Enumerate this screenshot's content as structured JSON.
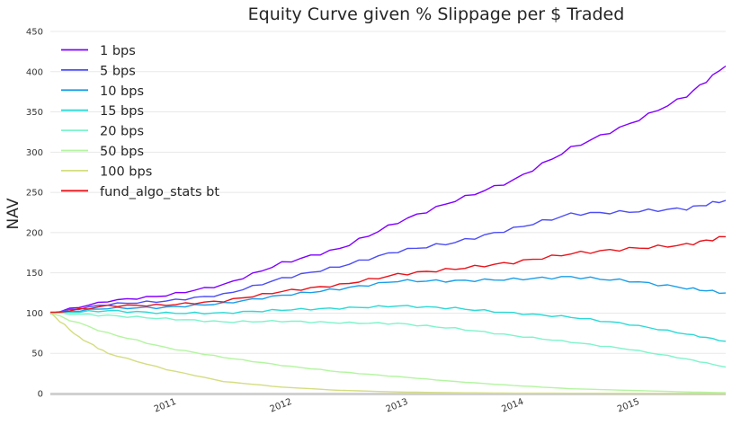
{
  "chart_data": {
    "type": "line",
    "title": "Equity Curve given % Slippage per $ Traded",
    "xlabel": "",
    "ylabel": "NAV",
    "x_domain": [
      "2010-01-01",
      "2015-11-01"
    ],
    "ylim": [
      0,
      450
    ],
    "yticks": [
      0,
      50,
      100,
      150,
      200,
      250,
      300,
      350,
      400,
      450
    ],
    "xticks": [
      "2011",
      "2012",
      "2013",
      "2014",
      "2015"
    ],
    "grid": true,
    "legend_position": "top-left",
    "series": [
      {
        "name": "1 bps",
        "color": "#8000ff",
        "points": [
          [
            "2010-01-01",
            100
          ],
          [
            "2010-07-01",
            115
          ],
          [
            "2011-01-01",
            122
          ],
          [
            "2011-07-01",
            135
          ],
          [
            "2012-01-01",
            162
          ],
          [
            "2012-07-01",
            180
          ],
          [
            "2013-01-01",
            213
          ],
          [
            "2013-07-01",
            240
          ],
          [
            "2014-01-01",
            265
          ],
          [
            "2014-07-01",
            305
          ],
          [
            "2015-01-01",
            335
          ],
          [
            "2015-07-01",
            370
          ],
          [
            "2015-11-01",
            407
          ]
        ]
      },
      {
        "name": "5 bps",
        "color": "#4d4df5",
        "points": [
          [
            "2010-01-01",
            100
          ],
          [
            "2010-07-01",
            111
          ],
          [
            "2011-01-01",
            115
          ],
          [
            "2011-07-01",
            123
          ],
          [
            "2012-01-01",
            143
          ],
          [
            "2012-07-01",
            158
          ],
          [
            "2013-01-01",
            177
          ],
          [
            "2013-07-01",
            188
          ],
          [
            "2014-01-01",
            205
          ],
          [
            "2014-07-01",
            223
          ],
          [
            "2015-01-01",
            226
          ],
          [
            "2015-07-01",
            230
          ],
          [
            "2015-11-01",
            240
          ]
        ]
      },
      {
        "name": "10 bps",
        "color": "#1a9ee8",
        "points": [
          [
            "2010-01-01",
            100
          ],
          [
            "2010-07-01",
            106
          ],
          [
            "2011-01-01",
            107
          ],
          [
            "2011-07-01",
            112
          ],
          [
            "2012-01-01",
            122
          ],
          [
            "2012-07-01",
            130
          ],
          [
            "2013-01-01",
            140
          ],
          [
            "2013-07-01",
            140
          ],
          [
            "2014-01-01",
            142
          ],
          [
            "2014-07-01",
            145
          ],
          [
            "2015-01-01",
            140
          ],
          [
            "2015-07-01",
            131
          ],
          [
            "2015-11-01",
            125
          ]
        ]
      },
      {
        "name": "15 bps",
        "color": "#2cd9d6",
        "points": [
          [
            "2010-01-01",
            100
          ],
          [
            "2010-07-01",
            103
          ],
          [
            "2011-01-01",
            100
          ],
          [
            "2011-07-01",
            100
          ],
          [
            "2012-01-01",
            104
          ],
          [
            "2012-07-01",
            106
          ],
          [
            "2013-01-01",
            109
          ],
          [
            "2013-07-01",
            106
          ],
          [
            "2014-01-01",
            100
          ],
          [
            "2014-07-01",
            95
          ],
          [
            "2015-01-01",
            86
          ],
          [
            "2015-07-01",
            74
          ],
          [
            "2015-11-01",
            65
          ]
        ]
      },
      {
        "name": "20 bps",
        "color": "#7ef4cb",
        "points": [
          [
            "2010-01-01",
            100
          ],
          [
            "2010-07-01",
            97
          ],
          [
            "2011-01-01",
            93
          ],
          [
            "2011-07-01",
            89
          ],
          [
            "2012-01-01",
            90
          ],
          [
            "2012-07-01",
            88
          ],
          [
            "2013-01-01",
            87
          ],
          [
            "2013-07-01",
            81
          ],
          [
            "2014-01-01",
            72
          ],
          [
            "2014-07-01",
            64
          ],
          [
            "2015-01-01",
            55
          ],
          [
            "2015-07-01",
            43
          ],
          [
            "2015-11-01",
            33
          ]
        ]
      },
      {
        "name": "50 bps",
        "color": "#b3f5a0",
        "points": [
          [
            "2010-01-01",
            100
          ],
          [
            "2010-07-01",
            75
          ],
          [
            "2011-01-01",
            57
          ],
          [
            "2011-07-01",
            45
          ],
          [
            "2012-01-01",
            35
          ],
          [
            "2012-07-01",
            27
          ],
          [
            "2013-01-01",
            21
          ],
          [
            "2013-07-01",
            15
          ],
          [
            "2014-01-01",
            10
          ],
          [
            "2014-07-01",
            6
          ],
          [
            "2015-01-01",
            4
          ],
          [
            "2015-07-01",
            2
          ],
          [
            "2015-11-01",
            1
          ]
        ]
      },
      {
        "name": "100 bps",
        "color": "#d4dd80",
        "points": [
          [
            "2010-01-01",
            100
          ],
          [
            "2010-04-01",
            70
          ],
          [
            "2010-07-01",
            50
          ],
          [
            "2011-01-01",
            30
          ],
          [
            "2011-07-01",
            15
          ],
          [
            "2012-01-01",
            8
          ],
          [
            "2012-07-01",
            4
          ],
          [
            "2013-01-01",
            2
          ],
          [
            "2013-07-01",
            1
          ],
          [
            "2014-01-01",
            0.5
          ],
          [
            "2015-01-01",
            0.2
          ],
          [
            "2015-11-01",
            0
          ]
        ]
      },
      {
        "name": "fund_algo_stats bt",
        "color": "#e8141c",
        "points": [
          [
            "2010-01-01",
            100
          ],
          [
            "2010-07-01",
            109
          ],
          [
            "2011-01-01",
            110
          ],
          [
            "2011-07-01",
            115
          ],
          [
            "2012-01-01",
            127
          ],
          [
            "2012-07-01",
            135
          ],
          [
            "2013-01-01",
            148
          ],
          [
            "2013-07-01",
            155
          ],
          [
            "2014-01-01",
            163
          ],
          [
            "2014-07-01",
            174
          ],
          [
            "2015-01-01",
            180
          ],
          [
            "2015-07-01",
            185
          ],
          [
            "2015-11-01",
            195
          ]
        ]
      }
    ]
  }
}
